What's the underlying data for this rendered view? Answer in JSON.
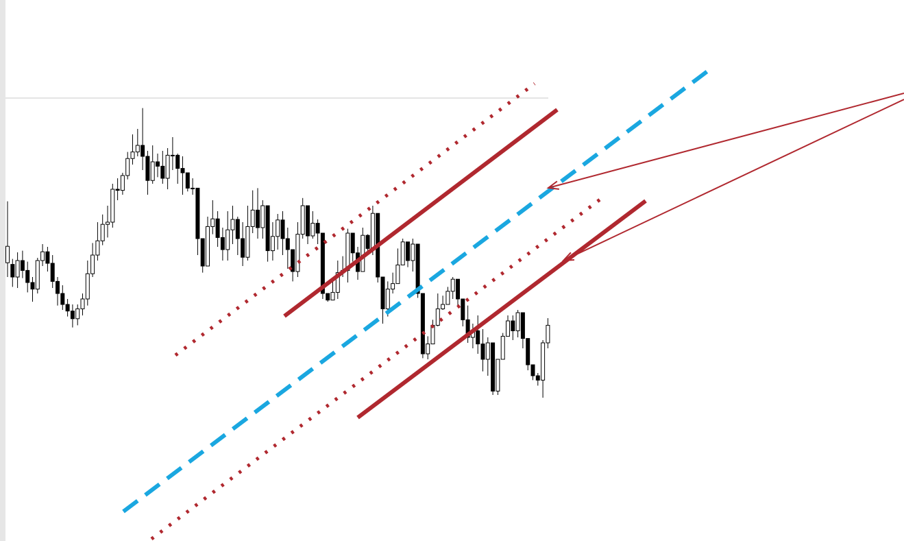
{
  "chart_data": {
    "type": "candlestick",
    "title": "",
    "xlabel": "",
    "ylabel": "",
    "grid": false,
    "legend": "none",
    "candles": [
      [
        496,
        526,
        608,
        470
      ],
      [
        493,
        470,
        503,
        452
      ],
      [
        470,
        500,
        515,
        450
      ],
      [
        500,
        482,
        518,
        468
      ],
      [
        482,
        460,
        498,
        442
      ],
      [
        460,
        448,
        470,
        425
      ],
      [
        448,
        500,
        505,
        440
      ],
      [
        500,
        516,
        530,
        490
      ],
      [
        516,
        495,
        525,
        480
      ],
      [
        495,
        462,
        510,
        450
      ],
      [
        462,
        440,
        470,
        418
      ],
      [
        440,
        420,
        455,
        410
      ],
      [
        420,
        408,
        430,
        398
      ],
      [
        408,
        394,
        420,
        378
      ],
      [
        394,
        412,
        420,
        382
      ],
      [
        412,
        430,
        440,
        400
      ],
      [
        430,
        476,
        500,
        418
      ],
      [
        476,
        510,
        532,
        470
      ],
      [
        510,
        536,
        570,
        500
      ],
      [
        536,
        566,
        584,
        528
      ],
      [
        566,
        570,
        600,
        542
      ],
      [
        570,
        630,
        640,
        560
      ],
      [
        630,
        628,
        650,
        610
      ],
      [
        628,
        655,
        660,
        620
      ],
      [
        655,
        686,
        698,
        648
      ],
      [
        686,
        698,
        730,
        675
      ],
      [
        698,
        710,
        740,
        690
      ],
      [
        710,
        690,
        778,
        665
      ],
      [
        690,
        646,
        700,
        620
      ],
      [
        646,
        680,
        710,
        640
      ],
      [
        680,
        672,
        695,
        652
      ],
      [
        672,
        650,
        700,
        640
      ],
      [
        650,
        692,
        705,
        630
      ],
      [
        692,
        692,
        725,
        665
      ],
      [
        692,
        668,
        695,
        640
      ],
      [
        668,
        660,
        690,
        620
      ],
      [
        660,
        632,
        652,
        626
      ],
      [
        632,
        632,
        650,
        620
      ],
      [
        632,
        540,
        545,
        510
      ],
      [
        540,
        490,
        500,
        478
      ],
      [
        490,
        562,
        580,
        525
      ],
      [
        562,
        576,
        610,
        548
      ],
      [
        576,
        542,
        590,
        525
      ],
      [
        542,
        520,
        560,
        500
      ],
      [
        520,
        556,
        590,
        500
      ],
      [
        556,
        575,
        600,
        530
      ],
      [
        575,
        540,
        580,
        510
      ],
      [
        540,
        506,
        570,
        490
      ],
      [
        506,
        562,
        600,
        500
      ],
      [
        562,
        592,
        628,
        550
      ],
      [
        592,
        560,
        632,
        540
      ],
      [
        560,
        600,
        610,
        540
      ],
      [
        600,
        518,
        580,
        498
      ],
      [
        518,
        544,
        570,
        500
      ],
      [
        544,
        574,
        585,
        520
      ],
      [
        574,
        540,
        590,
        510
      ],
      [
        540,
        520,
        560,
        485
      ],
      [
        520,
        480,
        500,
        462
      ],
      [
        480,
        548,
        570,
        470
      ],
      [
        548,
        600,
        614,
        540
      ],
      [
        600,
        545,
        588,
        530
      ],
      [
        545,
        568,
        590,
        540
      ],
      [
        568,
        550,
        575,
        530
      ],
      [
        550,
        440,
        463,
        430
      ],
      [
        440,
        428,
        440,
        425
      ],
      [
        428,
        442,
        462,
        430
      ],
      [
        442,
        478,
        500,
        430
      ],
      [
        478,
        482,
        508,
        470
      ],
      [
        482,
        550,
        558,
        460
      ],
      [
        550,
        514,
        540,
        498
      ],
      [
        514,
        480,
        525,
        465
      ],
      [
        480,
        546,
        560,
        505
      ],
      [
        546,
        522,
        548,
        510
      ],
      [
        522,
        586,
        600,
        510
      ],
      [
        586,
        470,
        530,
        460
      ],
      [
        470,
        412,
        460,
        385
      ],
      [
        412,
        448,
        462,
        398
      ],
      [
        448,
        458,
        478,
        440
      ],
      [
        458,
        492,
        522,
        470
      ],
      [
        492,
        534,
        540,
        505
      ],
      [
        534,
        500,
        530,
        488
      ],
      [
        500,
        530,
        540,
        480
      ],
      [
        530,
        440,
        485,
        432
      ],
      [
        440,
        330,
        370,
        322
      ],
      [
        330,
        348,
        362,
        320
      ],
      [
        348,
        382,
        392,
        350
      ],
      [
        382,
        412,
        440,
        380
      ],
      [
        412,
        420,
        436,
        410
      ],
      [
        420,
        444,
        452,
        428
      ],
      [
        444,
        466,
        470,
        430
      ],
      [
        466,
        430,
        450,
        418
      ],
      [
        430,
        392,
        412,
        380
      ],
      [
        392,
        360,
        418,
        350
      ],
      [
        360,
        372,
        385,
        340
      ],
      [
        372,
        348,
        400,
        330
      ],
      [
        348,
        320,
        375,
        298
      ],
      [
        320,
        350,
        360,
        290
      ],
      [
        350,
        262,
        300,
        255
      ],
      [
        262,
        320,
        320,
        255
      ],
      [
        320,
        362,
        368,
        338
      ],
      [
        362,
        390,
        400,
        375
      ],
      [
        390,
        372,
        400,
        355
      ],
      [
        372,
        405,
        410,
        360
      ],
      [
        405,
        358,
        396,
        340
      ],
      [
        358,
        310,
        320,
        300
      ],
      [
        310,
        290,
        310,
        282
      ],
      [
        290,
        282,
        295,
        272
      ],
      [
        282,
        350,
        355,
        250
      ],
      [
        350,
        382,
        395,
        340
      ]
    ],
    "drawings": [
      {
        "type": "channel-line",
        "style": "solid",
        "color": "#b0282f"
      },
      {
        "type": "channel-line",
        "style": "solid",
        "color": "#b0282f"
      },
      {
        "type": "channel-line",
        "style": "dotted",
        "color": "#b0282f"
      },
      {
        "type": "channel-line",
        "style": "dotted",
        "color": "#b0282f"
      },
      {
        "type": "channel-line",
        "style": "dotted",
        "color": "#b0282f"
      },
      {
        "type": "midline",
        "style": "dashed",
        "color": "#1aa7e0"
      },
      {
        "type": "pointer-arrow",
        "color": "#b0282f"
      },
      {
        "type": "pointer-arrow",
        "color": "#b0282f"
      }
    ],
    "colors": {
      "up": "#ffffff",
      "down": "#000000",
      "wick": "#000000",
      "channel": "#b0282f",
      "midline": "#1aa7e0",
      "reference_line": "#c8c8c8"
    }
  }
}
